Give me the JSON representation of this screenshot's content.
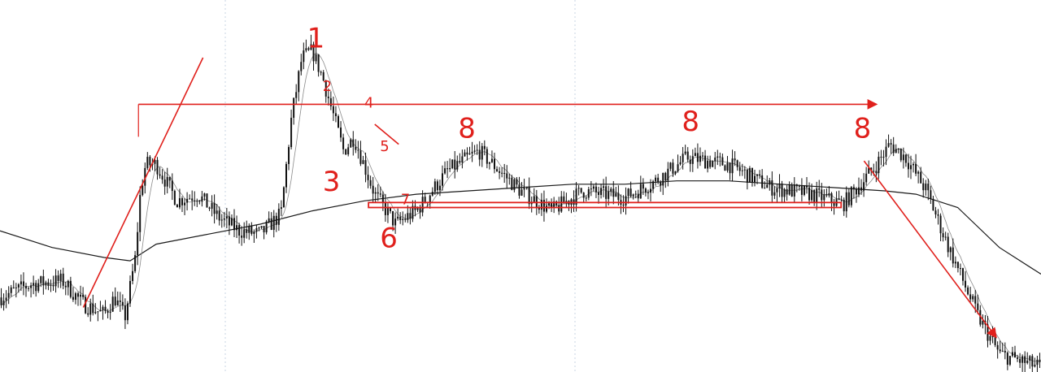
{
  "header": {
    "symbol_text": ""
  },
  "colors": {
    "candles": "#111111",
    "fast_ma": "#8a8a8a",
    "slow_ma": "#1a1a1a",
    "drawing": "#e0201c",
    "divider": "#c9d6e3"
  },
  "chart_data": {
    "type": "line",
    "title": "",
    "xlabel": "",
    "ylabel": "",
    "grid": false,
    "legend": "none",
    "ylim": [
      0,
      100
    ],
    "x_range": [
      0,
      100
    ],
    "series": [
      {
        "x": [
          0,
          3,
          6,
          8,
          10,
          11,
          12,
          13,
          13.5,
          14,
          15,
          17,
          19,
          21,
          23,
          25,
          27,
          28,
          29,
          30,
          31,
          33,
          34,
          36,
          38,
          40,
          43,
          46,
          50,
          53,
          56,
          58,
          60,
          63,
          66,
          70,
          74,
          78,
          81,
          84,
          85.5,
          87,
          89,
          91,
          94,
          96,
          100
        ],
        "y": [
          18,
          22,
          23,
          16,
          13,
          18,
          12,
          30,
          50,
          58,
          58,
          47,
          49,
          42,
          38,
          37,
          43,
          72,
          90,
          92,
          84,
          62,
          66,
          49,
          40,
          44,
          56,
          62,
          50,
          44,
          50,
          49,
          48,
          53,
          60,
          58,
          51,
          49,
          46,
          57,
          64,
          60,
          50,
          34,
          12,
          1,
          -3
        ]
      },
      {
        "x": [
          0,
          5,
          10,
          12.5,
          15,
          20,
          25,
          30,
          35,
          40,
          45,
          50,
          55,
          60,
          65,
          70,
          75,
          80,
          85,
          88,
          92,
          96,
          100
        ],
        "y": [
          38,
          33,
          30,
          29,
          34,
          37,
          40,
          44,
          47,
          49,
          50,
          51,
          52,
          52,
          53,
          53,
          52,
          51,
          50,
          49,
          45,
          33,
          25
        ]
      }
    ],
    "drawings": {
      "annotations": [
        {
          "text": "1",
          "x": 29.5,
          "y": 93
        },
        {
          "text": "2",
          "x": 31,
          "y": 80
        },
        {
          "text": "3",
          "x": 31,
          "y": 50
        },
        {
          "text": "4",
          "x": 35,
          "y": 75
        },
        {
          "text": "5",
          "x": 36.5,
          "y": 62
        },
        {
          "text": "6",
          "x": 36.5,
          "y": 33
        },
        {
          "text": "7",
          "x": 38.5,
          "y": 46
        },
        {
          "text": "8",
          "x": 44,
          "y": 66
        },
        {
          "text": "8",
          "x": 65.5,
          "y": 68
        },
        {
          "text": "8",
          "x": 82,
          "y": 66
        }
      ],
      "resistance_line": {
        "x1": 13.3,
        "x2": 84.2,
        "y": 76
      },
      "support_box": {
        "x1": 35.4,
        "x2": 80.8,
        "y_top": 46.5,
        "y_bottom": 45
      },
      "trendlines": [
        {
          "x1": 8,
          "y1": 15,
          "x2": 19.5,
          "y2": 90
        },
        {
          "x1": 83,
          "y1": 59,
          "x2": 95.7,
          "y2": 6
        }
      ],
      "tick_mark": {
        "x1": 36,
        "y1": 70,
        "x2": 38.3,
        "y2": 64
      }
    }
  }
}
